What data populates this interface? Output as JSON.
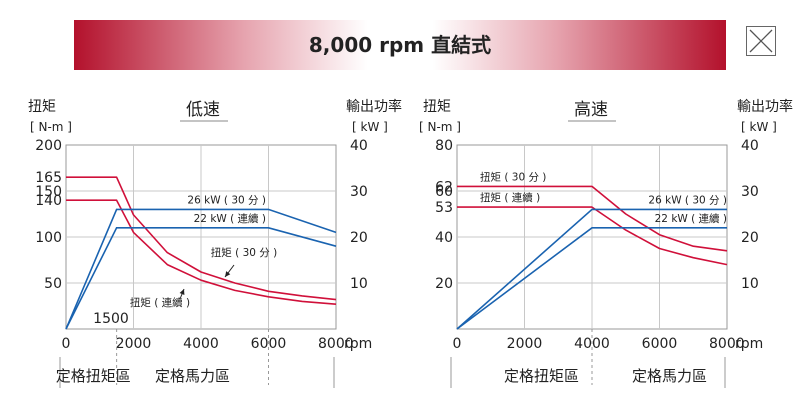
{
  "banner": {
    "title": "8,000 rpm 直結式"
  },
  "close_icon": "close-icon",
  "colors": {
    "torque": "#d0103a",
    "power": "#1a63b0",
    "grid": "#c8c8c8",
    "banner_red": "#b3112c"
  },
  "chart_data": [
    {
      "type": "line",
      "title": "低速",
      "y_left_label_1": "扭矩",
      "y_left_label_2": "[ N-m ]",
      "y_right_label_1": "輸出功率",
      "y_right_label_2": "[ kW ]",
      "x_unit": "rpm",
      "xlim": [
        0,
        8000
      ],
      "x_ticks": [
        "0",
        "2000",
        "4000",
        "6000",
        "8000"
      ],
      "ylim_left": [
        0,
        200
      ],
      "ylim_right": [
        0,
        40
      ],
      "y_left_ticks": [
        "200",
        "165",
        "150",
        "140",
        "100",
        "50"
      ],
      "y_left_tick_values": [
        200,
        165,
        150,
        140,
        100,
        50
      ],
      "y_right_ticks": [
        "40",
        "30",
        "20",
        "10"
      ],
      "y_right_tick_values": [
        40,
        30,
        20,
        10
      ],
      "base_speed_label": "1500",
      "region_labels": [
        "定格扭矩區",
        "定格馬力區"
      ],
      "series": [
        {
          "name": "扭矩 ( 30 分 )",
          "kind": "torque",
          "axis": "left",
          "x": [
            0,
            1500,
            2000,
            3000,
            4000,
            5000,
            6000,
            7000,
            8000
          ],
          "y": [
            165,
            165,
            124,
            83,
            62,
            50,
            41,
            36,
            32
          ]
        },
        {
          "name": "扭矩 ( 連續 )",
          "kind": "torque",
          "axis": "left",
          "x": [
            0,
            1500,
            2000,
            3000,
            4000,
            5000,
            6000,
            7000,
            8000
          ],
          "y": [
            140,
            140,
            105,
            70,
            53,
            42,
            35,
            30,
            27
          ]
        },
        {
          "name": "26 kW ( 30 分 )",
          "kind": "power",
          "axis": "right",
          "x": [
            0,
            1500,
            6000,
            8000
          ],
          "y": [
            0,
            26,
            26,
            21
          ]
        },
        {
          "name": "22 kW ( 連續 )",
          "kind": "power",
          "axis": "right",
          "x": [
            0,
            1500,
            6000,
            8000
          ],
          "y": [
            0,
            22,
            22,
            18
          ]
        }
      ]
    },
    {
      "type": "line",
      "title": "高速",
      "y_left_label_1": "扭矩",
      "y_left_label_2": "[ N-m ]",
      "y_right_label_1": "輸出功率",
      "y_right_label_2": "[ kW ]",
      "x_unit": "rpm",
      "xlim": [
        0,
        8000
      ],
      "x_ticks": [
        "0",
        "2000",
        "4000",
        "6000",
        "8000"
      ],
      "ylim_left": [
        0,
        80
      ],
      "ylim_right": [
        0,
        40
      ],
      "y_left_ticks": [
        "80",
        "62",
        "60",
        "53",
        "40",
        "20"
      ],
      "y_left_tick_values": [
        80,
        62,
        60,
        53,
        40,
        20
      ],
      "y_right_ticks": [
        "40",
        "30",
        "20",
        "10"
      ],
      "y_right_tick_values": [
        40,
        30,
        20,
        10
      ],
      "region_labels": [
        "定格扭矩區",
        "定格馬力區"
      ],
      "series": [
        {
          "name": "扭矩 ( 30 分 )",
          "kind": "torque",
          "axis": "left",
          "x": [
            0,
            4000,
            5000,
            6000,
            7000,
            8000
          ],
          "y": [
            62,
            62,
            50,
            41,
            36,
            34
          ]
        },
        {
          "name": "扭矩 ( 連續 )",
          "kind": "torque",
          "axis": "left",
          "x": [
            0,
            4000,
            5000,
            6000,
            7000,
            8000
          ],
          "y": [
            53,
            53,
            43,
            35,
            31,
            28
          ]
        },
        {
          "name": "26 kW ( 30 分 )",
          "kind": "power",
          "axis": "right",
          "x": [
            0,
            4000,
            8000
          ],
          "y": [
            0,
            26,
            26
          ]
        },
        {
          "name": "22 kW ( 連續 )",
          "kind": "power",
          "axis": "right",
          "x": [
            0,
            4000,
            8000
          ],
          "y": [
            0,
            22,
            22
          ]
        }
      ]
    }
  ]
}
